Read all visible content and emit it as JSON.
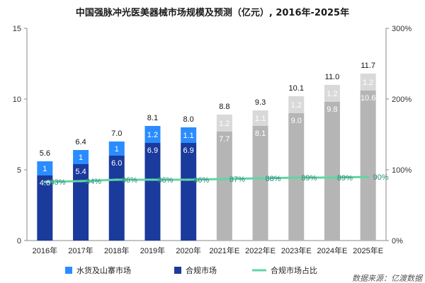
{
  "colors": {
    "compliant_actual": "#1a3a9c",
    "grey_actual": "#2b8cff",
    "compliant_forecast": "#b5b5b5",
    "grey_forecast": "#d9d9d9",
    "share_line": "#5fd6a4",
    "axis": "#888888",
    "pct_label": "#2a8a7a"
  },
  "chart_data": {
    "type": "bar",
    "title": "中国强脉冲光医美器械市场规模及预测（亿元）, 2016年-2025年",
    "categories": [
      "2016年",
      "2017年",
      "2018年",
      "2019年",
      "2020年",
      "2021年E",
      "2022年E",
      "2023年E",
      "2024年E",
      "2025年E"
    ],
    "forecast_from_index": 5,
    "totals": [
      "5.6",
      "6.4",
      "7.0",
      "8.1",
      "8.0",
      "8.8",
      "9.3",
      "10.1",
      "11.0",
      "11.7"
    ],
    "series": [
      {
        "name": "合规市场",
        "kind": "bar",
        "values": [
          4.6,
          5.4,
          6.0,
          6.9,
          6.9,
          7.7,
          8.1,
          9.0,
          9.8,
          10.6
        ],
        "labels": [
          "4.6",
          "5.4",
          "6.0",
          "6.9",
          "6.9",
          "7.7",
          "8.1",
          "9.0",
          "9.8",
          "10.6"
        ]
      },
      {
        "name": "水货及山寨市场",
        "kind": "bar",
        "values": [
          1,
          1,
          1,
          1.2,
          1.1,
          1.2,
          1.1,
          1.2,
          1.2,
          1.2
        ],
        "labels": [
          "1",
          "1",
          "1",
          "1.2",
          "1.1",
          "1.2",
          "1.1",
          "1.2",
          "1.2",
          "1.2"
        ]
      },
      {
        "name": "合规市场占比",
        "kind": "line",
        "axis": "right",
        "values": [
          83,
          84,
          86,
          86,
          86,
          87,
          88,
          89,
          89,
          90
        ],
        "labels": [
          "83%",
          "84%",
          "86%",
          "86%",
          "86%",
          "87%",
          "88%",
          "89%",
          "89%",
          "90%"
        ]
      }
    ],
    "y_left": {
      "min": 0,
      "max": 15,
      "ticks": [
        "0",
        "5",
        "10",
        "15"
      ],
      "tick_values": [
        0,
        5,
        10,
        15
      ]
    },
    "y_right": {
      "min": 0,
      "max": 300,
      "ticks": [
        "0%",
        "100%",
        "200%",
        "300%"
      ],
      "tick_values": [
        0,
        100,
        200,
        300
      ]
    },
    "legend": [
      "水货及山寨市场",
      "合规市场",
      "合规市场占比"
    ],
    "legend_position": "bottom",
    "grid": false
  },
  "source": "数据来源：亿渡数据"
}
